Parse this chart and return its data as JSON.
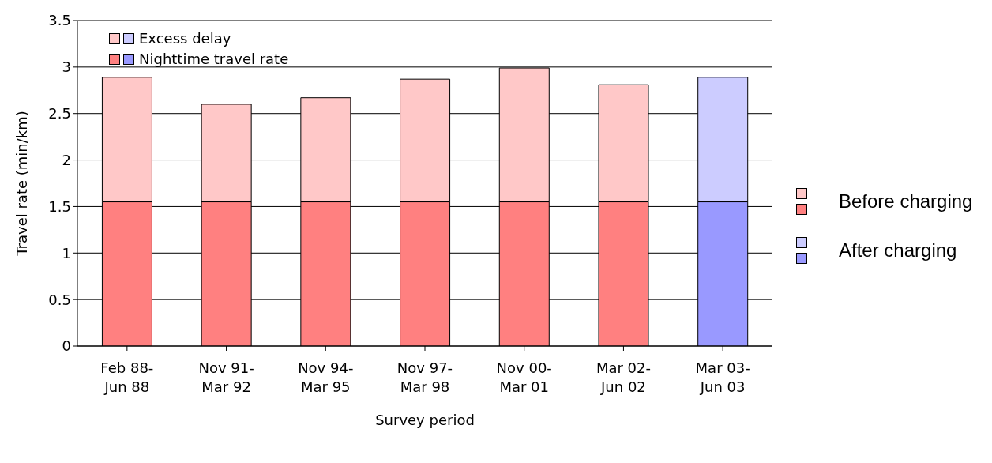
{
  "chart_data": {
    "type": "bar",
    "stacked": true,
    "xlabel": "Survey period",
    "ylabel": "Travel rate (min/km)",
    "categories": [
      "Feb 88-\nJun 88",
      "Nov 91-\nMar 92",
      "Nov 94-\nMar 95",
      "Nov 97-\nMar 98",
      "Nov 00-\nMar 01",
      "Mar 02-\nJun 02",
      "Mar 03-\nJun 03"
    ],
    "series": [
      {
        "name": "Nighttime travel rate",
        "color": "#ff8080",
        "colors": [
          "#ff8080",
          "#ff8080",
          "#ff8080",
          "#ff8080",
          "#ff8080",
          "#ff8080",
          "#9999ff"
        ],
        "values": [
          1.55,
          1.55,
          1.55,
          1.55,
          1.55,
          1.55,
          1.55
        ]
      },
      {
        "name": "Excess delay",
        "color": "#ffc8c8",
        "colors": [
          "#ffc8c8",
          "#ffc8c8",
          "#ffc8c8",
          "#ffc8c8",
          "#ffc8c8",
          "#ffc8c8",
          "#ccccff"
        ],
        "values": [
          1.34,
          1.05,
          1.12,
          1.32,
          1.44,
          1.26,
          1.34
        ]
      }
    ],
    "ylim": [
      0,
      3.5
    ],
    "yticks": [
      0,
      0.5,
      1,
      1.5,
      2,
      2.5,
      3,
      3.5
    ],
    "grid": "y",
    "legend": "top left",
    "annotations": [
      "Before charging",
      "After charging"
    ]
  }
}
